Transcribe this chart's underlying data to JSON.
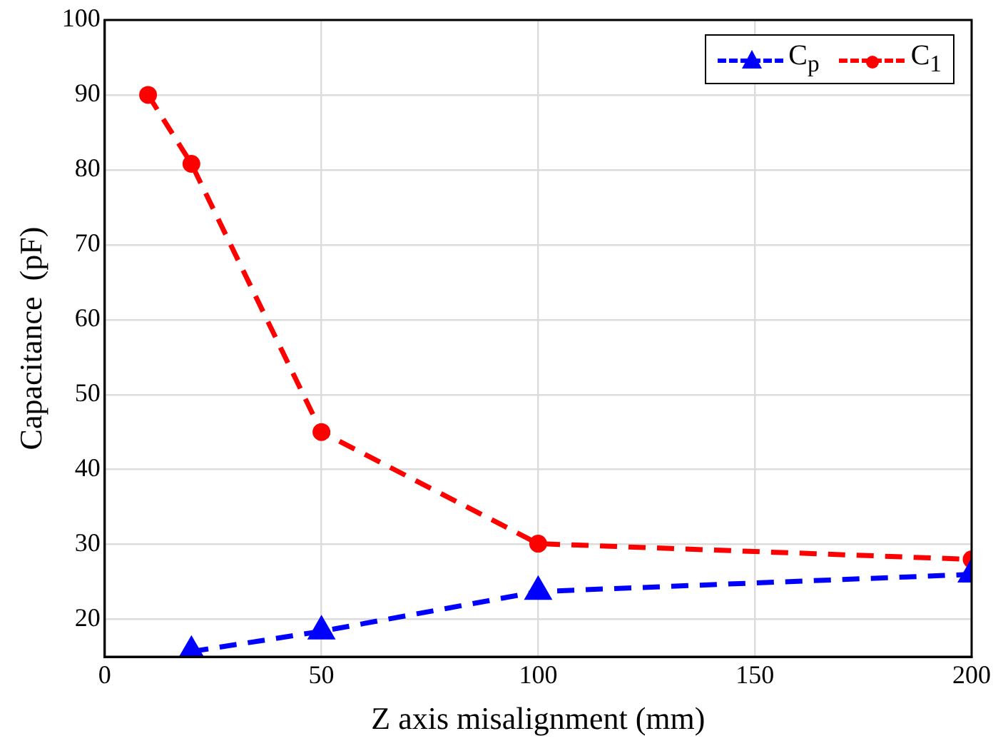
{
  "chart_data": {
    "type": "line",
    "xlabel": "Z axis misalignment (mm)",
    "ylabel": "Capacitance  (pF)",
    "xlim": [
      0,
      200
    ],
    "xticks": [
      0,
      50,
      100,
      150,
      200
    ],
    "ylim": [
      15,
      100
    ],
    "yticks": [
      20,
      30,
      40,
      50,
      60,
      70,
      80,
      90,
      100
    ],
    "grid": true,
    "legend": "top right",
    "line_style": "dashed",
    "series": [
      {
        "name": "C$_{p}$",
        "color": "#0000ff",
        "marker": "triangle",
        "x": [
          20,
          50,
          100,
          200
        ],
        "values": [
          15.7,
          18.4,
          23.7,
          26.0
        ]
      },
      {
        "name": "C$_{1}$",
        "color": "#ff0000",
        "marker": "circle",
        "x": [
          10,
          20,
          50,
          100,
          200
        ],
        "values": [
          90,
          80.8,
          45,
          30.1,
          28
        ]
      }
    ]
  }
}
